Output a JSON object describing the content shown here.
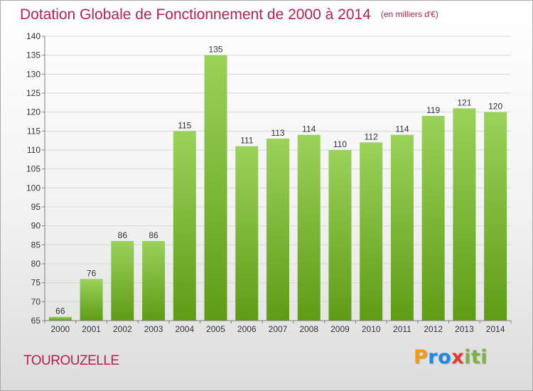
{
  "title": "Dotation Globale de Fonctionnement de 2000 à 2014",
  "title_unit": "(en milliers d'€)",
  "commune": "TOUROUZELLE",
  "logo": {
    "text": "Proxiti",
    "letters": [
      {
        "ch": "P",
        "color": "#f39c12"
      },
      {
        "ch": "r",
        "color": "#1e88e5"
      },
      {
        "ch": "o",
        "color": "#1e88e5"
      },
      {
        "ch": "x",
        "color": "#e53935"
      },
      {
        "ch": "i",
        "color": "#7cb342"
      },
      {
        "ch": "t",
        "color": "#7cb342"
      },
      {
        "ch": "i",
        "color": "#7cb342"
      }
    ]
  },
  "colors": {
    "bar_top": "#9bd25a",
    "bar_bottom": "#5e9c15",
    "title": "#b4234e",
    "grid": "#d7d7d7",
    "axis": "#7f7f7f"
  },
  "chart_data": {
    "type": "bar",
    "categories": [
      "2000",
      "2001",
      "2002",
      "2003",
      "2004",
      "2005",
      "2006",
      "2007",
      "2008",
      "2009",
      "2010",
      "2011",
      "2012",
      "2013",
      "2014"
    ],
    "values": [
      66,
      76,
      86,
      86,
      115,
      135,
      111,
      113,
      114,
      110,
      112,
      114,
      119,
      121,
      120
    ],
    "title": "Dotation Globale de Fonctionnement de 2000 à 2014",
    "ylim": [
      65,
      140
    ],
    "yticks": [
      65,
      70,
      75,
      80,
      85,
      90,
      95,
      100,
      105,
      110,
      115,
      120,
      125,
      130,
      135,
      140
    ],
    "grid": true,
    "data_labels": true
  }
}
